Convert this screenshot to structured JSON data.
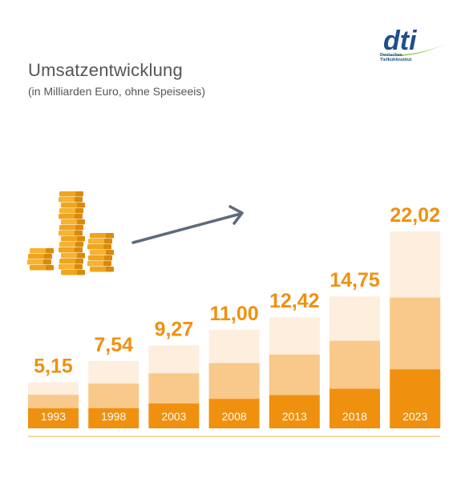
{
  "header": {
    "title": "Umsatzentwicklung",
    "subtitle": "(in Milliarden Euro, ohne Speiseeis)"
  },
  "logo": {
    "mark": "dti",
    "line1": "Deutsches",
    "line2": "Tiefkühlinstitut"
  },
  "colors": {
    "dark": "#f0900f",
    "mid": "#f8c98a",
    "light": "#fdeede",
    "value_label": "#f0900f",
    "arrow": "#5d6b7c",
    "baseline": "#f8c98a",
    "logo_blue": "#1f4e8c",
    "logo_green": "#8cc63f"
  },
  "chart_data": {
    "type": "bar",
    "title": "Umsatzentwicklung",
    "subtitle": "(in Milliarden Euro, ohne Speiseeis)",
    "categories": [
      "1993",
      "1998",
      "2003",
      "2008",
      "2013",
      "2018",
      "2023"
    ],
    "values": [
      5.15,
      7.54,
      9.27,
      11.0,
      12.42,
      14.75,
      22.02
    ],
    "value_labels": [
      "5,15",
      "7,54",
      "9,27",
      "11,00",
      "12,42",
      "14,75",
      "22,02"
    ],
    "ylim": [
      0,
      22.02
    ],
    "grid": false,
    "legend": "none"
  },
  "illustration": {
    "coins_icon": "coin-stacks-icon",
    "arrow_icon": "growth-arrow-icon"
  }
}
